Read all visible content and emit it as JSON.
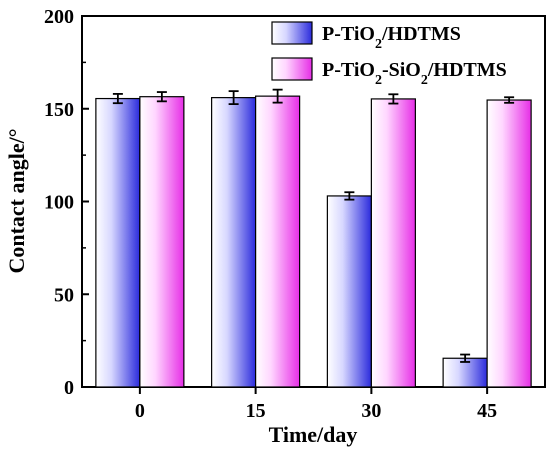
{
  "chart_data": {
    "type": "bar",
    "xlabel": "Time/day",
    "ylabel": "Contact angle/°",
    "categories": [
      "0",
      "15",
      "30",
      "45"
    ],
    "ylim": [
      0,
      200
    ],
    "yticks": [
      0,
      50,
      100,
      150,
      200
    ],
    "grid": false,
    "legend_position": "top-right",
    "series": [
      {
        "name": "P-TiO2/HDTMS",
        "name_parts": [
          {
            "text": "P-TiO",
            "sub": false
          },
          {
            "text": "2",
            "sub": true
          },
          {
            "text": "/HDTMS",
            "sub": false
          }
        ],
        "color": "#2b2bdc",
        "values": [
          155.5,
          156.0,
          103.0,
          15.5
        ],
        "errors": [
          2.5,
          3.5,
          2.0,
          2.0
        ]
      },
      {
        "name": "P-TiO2-SiO2/HDTMS",
        "name_parts": [
          {
            "text": "P-TiO",
            "sub": false
          },
          {
            "text": "2",
            "sub": true
          },
          {
            "text": "-SiO",
            "sub": false
          },
          {
            "text": "2",
            "sub": true
          },
          {
            "text": "/HDTMS",
            "sub": false
          }
        ],
        "color": "#e62ee6",
        "values": [
          156.5,
          156.8,
          155.3,
          154.7
        ],
        "errors": [
          2.5,
          3.5,
          2.5,
          1.5
        ]
      }
    ]
  }
}
